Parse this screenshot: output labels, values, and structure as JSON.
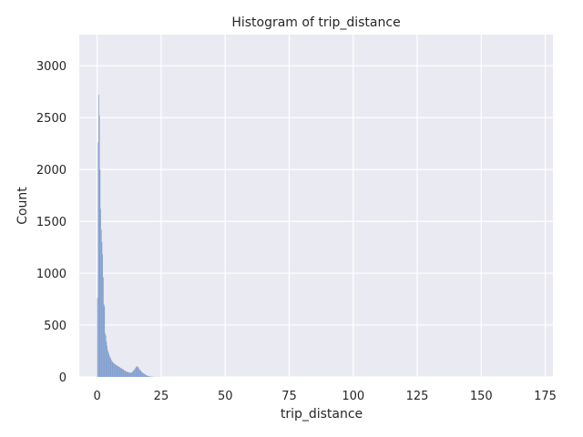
{
  "chart_data": {
    "type": "bar",
    "title": "Histogram of trip_distance",
    "xlabel": "trip_distance",
    "ylabel": "Count",
    "xlim": [
      -7,
      178
    ],
    "ylim": [
      0,
      3300
    ],
    "xticks": [
      0,
      25,
      50,
      75,
      100,
      125,
      150,
      175
    ],
    "yticks": [
      0,
      500,
      1000,
      1500,
      2000,
      2500,
      3000
    ],
    "grid": true,
    "bin_start": 0,
    "bin_width": 0.25,
    "values": [
      760,
      2260,
      2720,
      2520,
      2000,
      1620,
      1420,
      1300,
      1180,
      960,
      700,
      680,
      420,
      400,
      340,
      300,
      260,
      240,
      220,
      200,
      190,
      175,
      160,
      150,
      140,
      135,
      130,
      125,
      120,
      115,
      112,
      108,
      104,
      100,
      96,
      92,
      88,
      84,
      80,
      76,
      72,
      68,
      64,
      60,
      56,
      52,
      50,
      48,
      46,
      44,
      42,
      40,
      40,
      42,
      46,
      52,
      58,
      66,
      74,
      84,
      92,
      100,
      104,
      98,
      90,
      80,
      72,
      64,
      56,
      50,
      44,
      38,
      34,
      30,
      26,
      22,
      18,
      15,
      12,
      10,
      8,
      6,
      5,
      4,
      3,
      3,
      2,
      2,
      2,
      1,
      1,
      1,
      1,
      1,
      1,
      1,
      1,
      1,
      1,
      1
    ],
    "bar_color": "#7f9ccd",
    "background_color": "#eaeaf2",
    "grid_color": "#ffffff"
  }
}
